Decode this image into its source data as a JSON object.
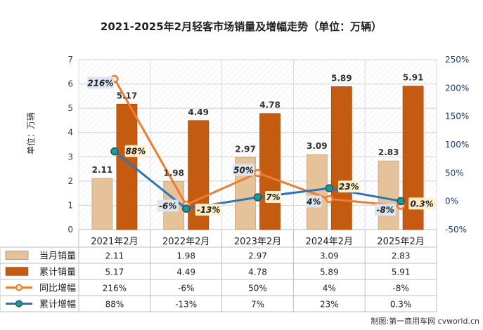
{
  "chart_data": {
    "type": "bar",
    "title": "2021-2025年2月轻客市场销量及增幅走势（单位：万辆）",
    "ylabel": "单位：万辆",
    "ylim": [
      0,
      7
    ],
    "y2lim": [
      -50,
      250
    ],
    "y_ticks": [
      "0",
      "1",
      "2",
      "3",
      "4",
      "5",
      "6",
      "7"
    ],
    "y2_ticks": [
      "-50%",
      "0%",
      "50%",
      "100%",
      "150%",
      "200%",
      "250%"
    ],
    "categories": [
      "2021年2月",
      "2022年2月",
      "2023年2月",
      "2024年2月",
      "2025年2月"
    ],
    "bar_series": [
      {
        "name": "当月销量",
        "values": [
          2.11,
          1.98,
          2.97,
          3.09,
          2.83
        ],
        "labels": [
          "2.11",
          "1.98",
          "2.97",
          "3.09",
          "2.83"
        ],
        "color": "#E6C29A"
      },
      {
        "name": "累计销量",
        "values": [
          5.17,
          4.49,
          4.78,
          5.89,
          5.91
        ],
        "labels": [
          "5.17",
          "4.49",
          "4.78",
          "5.89",
          "5.91"
        ],
        "color": "#C55A11"
      }
    ],
    "line_series": [
      {
        "name": "同比增幅",
        "values": [
          216,
          -6,
          50,
          4,
          -8
        ],
        "labels": [
          "216%",
          "-6%",
          "50%",
          "4%",
          "-8%"
        ],
        "color": "#ED7D31"
      },
      {
        "name": "累计增幅",
        "values": [
          88,
          -13,
          7,
          23,
          0.3
        ],
        "labels": [
          "88%",
          "-13%",
          "7%",
          "23%",
          "0.3%"
        ],
        "color": "#2E75B6"
      }
    ],
    "grid": true,
    "legend": "table-bottom"
  },
  "source": "制图:第一商用车网 cvworld.cn"
}
